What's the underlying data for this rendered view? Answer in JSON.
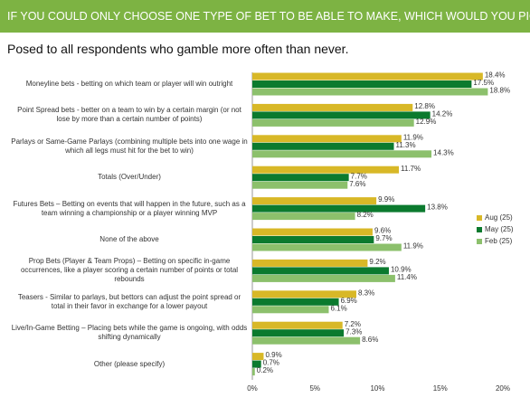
{
  "chart_data": {
    "type": "bar",
    "orientation": "horizontal",
    "title": "IF YOU COULD ONLY CHOOSE ONE TYPE OF BET TO BE ABLE TO MAKE, WHICH WOULD YOU PICK?",
    "subtitle": "Posed to all respondents who gamble more often than never.",
    "categories": [
      "Moneyline bets - betting on which team or player will win outright",
      "Point Spread bets - better on a team to win by a certain margin (or not lose by more than a certain number of points)",
      "Parlays or Same-Game Parlays (combining multiple bets into one wage in which all legs must hit for the bet to win)",
      "Totals (Over/Under)",
      "Futures Bets – Betting on events that will happen in the future, such as a team winning a championship or a player winning MVP",
      "None of the above",
      "Prop Bets (Player & Team Props) – Betting on specific in-game occurrences, like a player scoring a certain number of points or total rebounds",
      "Teasers - Similar to parlays, but bettors can adjust the point spread or total in their favor in exchange for a lower payout",
      "Live/In-Game Betting – Placing bets while the game is ongoing, with odds shifting dynamically",
      "Other (please specify)"
    ],
    "series": [
      {
        "name": "Aug (25)",
        "color": "#d8b827",
        "values": [
          18.4,
          12.8,
          11.9,
          11.7,
          9.9,
          9.6,
          9.2,
          8.3,
          7.2,
          0.9
        ],
        "value_labels": [
          "18.4%",
          "12.8%",
          "11.9%",
          "11.7%",
          "9.9%",
          "9.6%",
          "9.2%",
          "8.3%",
          "7.2%",
          "0.9%"
        ]
      },
      {
        "name": "May (25)",
        "color": "#0b7a2e",
        "values": [
          17.5,
          14.2,
          11.3,
          7.7,
          13.8,
          9.7,
          10.9,
          6.9,
          7.3,
          0.7
        ],
        "value_labels": [
          "17.5%",
          "14.2%",
          "11.3%",
          "7.7%",
          "13.8%",
          "9.7%",
          "10.9%",
          "6.9%",
          "7.3%",
          "0.7%"
        ]
      },
      {
        "name": "Feb (25)",
        "color": "#8cc06c",
        "values": [
          18.8,
          12.9,
          14.3,
          7.6,
          8.2,
          11.9,
          11.4,
          6.1,
          8.6,
          0.2
        ],
        "value_labels": [
          "18.8%",
          "12.9%",
          "14.3%",
          "7.6%",
          "8.2%",
          "11.9%",
          "11.4%",
          "6.1%",
          "8.6%",
          "0.2%"
        ]
      }
    ],
    "xlim": [
      0,
      20
    ],
    "xticks": [
      {
        "value": 0,
        "label": "0%"
      },
      {
        "value": 5,
        "label": "5%"
      },
      {
        "value": 10,
        "label": "10%"
      },
      {
        "value": 15,
        "label": "15%"
      },
      {
        "value": 20,
        "label": "20%"
      }
    ],
    "legend": "right"
  }
}
